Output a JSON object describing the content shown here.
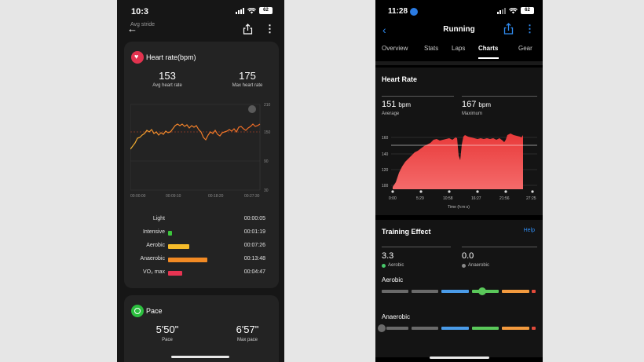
{
  "left": {
    "status": {
      "time": "10:3",
      "battery": "62"
    },
    "header": {
      "stride_label": "Avg stride"
    },
    "heart_rate": {
      "title": "Heart rate(bpm)",
      "avg_value": "153",
      "avg_label": "Avg heart rate",
      "max_value": "175",
      "max_label": "Max heart rate",
      "y_ticks": [
        "210",
        "150",
        "90",
        "30"
      ],
      "x_ticks": [
        "00:00:00",
        "00:09:10",
        "00:18:20",
        "00:27:30"
      ]
    },
    "zones": [
      {
        "name": "Light",
        "time": "00:00:05",
        "color": "#9c9c9c",
        "fraction": 0.0
      },
      {
        "name": "Intensive",
        "time": "00:01:19",
        "color": "#3cc63c",
        "fraction": 0.1
      },
      {
        "name": "Aerobic",
        "time": "00:07:26",
        "color": "#f5bb2a",
        "fraction": 0.54
      },
      {
        "name": "Anaerobic",
        "time": "00:13:48",
        "color": "#f28a24",
        "fraction": 1.0
      },
      {
        "name": "VO₂ max",
        "time": "00:04:47",
        "color": "#e73452",
        "fraction": 0.35
      }
    ],
    "pace": {
      "title": "Pace",
      "avg_value": "5'50\"",
      "avg_label": "Pace",
      "max_value": "6'57\"",
      "max_label": "Max pace"
    }
  },
  "right": {
    "status": {
      "time": "11:28",
      "battery": "62"
    },
    "header": {
      "title": "Running"
    },
    "tabs": [
      "Overview",
      "Stats",
      "Laps",
      "Charts",
      "Gear"
    ],
    "active_tab": "Charts",
    "heart_rate": {
      "title": "Heart Rate",
      "avg_value": "151",
      "avg_unit": "bpm",
      "avg_label": "Average",
      "max_value": "167",
      "max_unit": "bpm",
      "max_label": "Maximum",
      "y_ticks": [
        "160",
        "140",
        "120",
        "100"
      ],
      "x_ticks": [
        "0:00",
        "5:29",
        "10:58",
        "16:27",
        "21:56",
        "27:25"
      ],
      "x_axis_label": "Time (h:m:s)"
    },
    "training_effect": {
      "title": "Training Effect",
      "help_label": "Help",
      "aerobic_value": "3.3",
      "aerobic_label": "Aerobic",
      "anaerobic_value": "0.0",
      "anaerobic_label": "Anaerobic",
      "aerobic_row_label": "Aerobic",
      "anaerobic_row_label": "Anaerobic"
    }
  }
}
